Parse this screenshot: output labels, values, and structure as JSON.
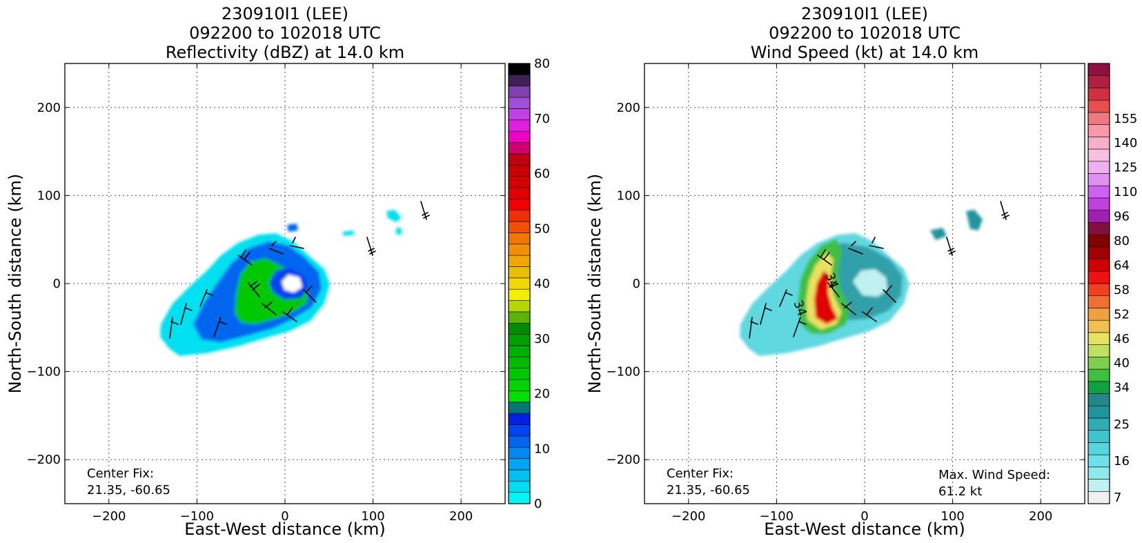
{
  "chart_data": [
    {
      "type": "heatmap",
      "title_lines": [
        "230910I1 (LEE)",
        "092200 to 102018 UTC",
        "Reflectivity (dBZ) at 14.0 km"
      ],
      "xlabel": "East-West distance (km)",
      "ylabel": "North-South distance (km)",
      "xlim": [
        -250,
        250
      ],
      "ylim": [
        -250,
        250
      ],
      "x_ticks": [
        -200,
        -100,
        0,
        100,
        200
      ],
      "y_ticks": [
        -200,
        -100,
        0,
        100,
        200
      ],
      "x_tick_labels": [
        "−200",
        "−100",
        "0",
        "100",
        "200"
      ],
      "y_tick_labels": [
        "−200",
        "−100",
        "0",
        "100",
        "200"
      ],
      "grid": true,
      "annotation_lines": [
        "Center Fix:",
        "21.35, -60.65"
      ],
      "colorbar": {
        "min": 0,
        "max": 80,
        "tick_values": [
          0,
          10,
          20,
          30,
          40,
          50,
          60,
          70,
          80
        ],
        "tick_labels": [
          "0",
          "10",
          "20",
          "30",
          "40",
          "50",
          "60",
          "70",
          "80"
        ],
        "colors": [
          "#00f5f5",
          "#00dcf0",
          "#00c0f0",
          "#00a4f0",
          "#0088f0",
          "#0066f0",
          "#0044f0",
          "#0022e0",
          "#007878",
          "#00e000",
          "#00d400",
          "#00c800",
          "#00bc00",
          "#00b000",
          "#00a000",
          "#008c00",
          "#5ab400",
          "#b4d800",
          "#f0f000",
          "#f0d800",
          "#e8c000",
          "#f0a800",
          "#f09000",
          "#f07800",
          "#f05000",
          "#f03000",
          "#f00000",
          "#e00000",
          "#d40000",
          "#c80000",
          "#c00010",
          "#d00070",
          "#f000c0",
          "#e020e0",
          "#c040e0",
          "#a050d8",
          "#8040b0",
          "#402050",
          "#000000"
        ]
      },
      "colors": {
        "low": "#00e0f0",
        "mid": "#0066f0",
        "high": "#00c800"
      }
    },
    {
      "type": "heatmap",
      "title_lines": [
        "230910I1 (LEE)",
        "092200 to 102018 UTC",
        "Wind Speed (kt) at 14.0 km"
      ],
      "xlabel": "East-West distance (km)",
      "ylabel": "North-South distance (km)",
      "xlim": [
        -250,
        250
      ],
      "ylim": [
        -250,
        250
      ],
      "x_ticks": [
        -200,
        -100,
        0,
        100,
        200
      ],
      "y_ticks": [
        -200,
        -100,
        0,
        100,
        200
      ],
      "x_tick_labels": [
        "−200",
        "−100",
        "0",
        "100",
        "200"
      ],
      "y_tick_labels": [
        "−200",
        "−100",
        "0",
        "100",
        "200"
      ],
      "grid": true,
      "annotation_lines": [
        "Center Fix:",
        "21.35, -60.65"
      ],
      "annotation_right_lines": [
        "Max. Wind Speed:",
        "61.2 kt"
      ],
      "contour_labels": [
        "34",
        "34"
      ],
      "colorbar": {
        "tick_labels": [
          "7",
          "16",
          "25",
          "34",
          "40",
          "46",
          "52",
          "58",
          "64",
          "80",
          "96",
          "110",
          "125",
          "140",
          "155"
        ],
        "tick_level_index": [
          0,
          3,
          6,
          9,
          11,
          13,
          15,
          17,
          19,
          21,
          23,
          25,
          27,
          29,
          31
        ],
        "colors": [
          "#f0f0f0",
          "#c0f0f0",
          "#90eaea",
          "#70e0e8",
          "#58d4dc",
          "#40c4cc",
          "#30acb4",
          "#20949c",
          "#208888",
          "#10a040",
          "#40c040",
          "#80d050",
          "#c0e060",
          "#e8e060",
          "#f0c050",
          "#f0a040",
          "#f07030",
          "#f04020",
          "#f01010",
          "#d00000",
          "#a00000",
          "#800000",
          "#801040",
          "#a020b0",
          "#c040e0",
          "#d060f0",
          "#e090f0",
          "#f0b0f0",
          "#f8c0e0",
          "#f8b0c8",
          "#f898a8",
          "#f07880",
          "#e85050",
          "#d03040",
          "#b02040",
          "#901040"
        ]
      },
      "colors": {
        "low": "#60d8e0",
        "mid": "#30a0a8",
        "core": "#e00000"
      }
    }
  ]
}
